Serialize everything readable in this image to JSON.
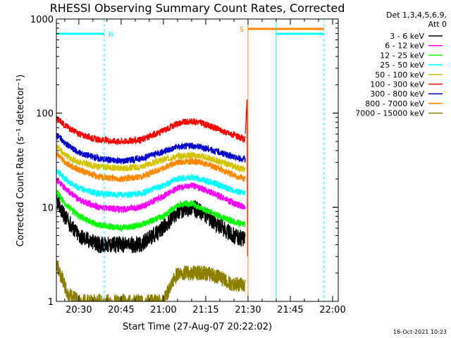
{
  "chart_data": {
    "type": "line",
    "title": "RHESSI Observing Summary Count Rates, Corrected",
    "xlabel": "Start Time (27-Aug-07 20:22:02)",
    "ylabel": "Corrected Count Rate (s⁻¹ detector⁻¹)",
    "y_scale": "log",
    "ylim": [
      1,
      1000
    ],
    "xlim": [
      "20:22:02",
      "22:02:00"
    ],
    "x_ticks": [
      "20:30",
      "20:45",
      "21:00",
      "21:15",
      "21:30",
      "21:45",
      "22:00"
    ],
    "y_ticks": [
      "1",
      "10",
      "100",
      "1000"
    ],
    "legend_title": [
      "Det 1,3,4,5,6,9,",
      "Att 0"
    ],
    "legend_position": "right",
    "series": [
      {
        "name": "3 - 6 keV",
        "color": "#000000",
        "x": [
          "20:22",
          "20:25",
          "20:30",
          "20:37",
          "20:45",
          "20:52",
          "21:00",
          "21:05",
          "21:10",
          "21:13",
          "21:18",
          "21:25",
          "21:29"
        ],
        "y": [
          12,
          8,
          5,
          4,
          4,
          4,
          6,
          9,
          10,
          9,
          7,
          5,
          4.5
        ]
      },
      {
        "name": "6 - 12 keV",
        "color": "#ff00ff",
        "x": [
          "20:22",
          "20:25",
          "20:30",
          "20:37",
          "20:45",
          "20:52",
          "21:00",
          "21:05",
          "21:10",
          "21:13",
          "21:18",
          "21:25",
          "21:29"
        ],
        "y": [
          20,
          16,
          12,
          10,
          9.5,
          10,
          13,
          16,
          17,
          16,
          14,
          11,
          10
        ]
      },
      {
        "name": "12 - 25 keV",
        "color": "#00ff00",
        "x": [
          "20:22",
          "20:25",
          "20:30",
          "20:37",
          "20:45",
          "20:52",
          "21:00",
          "21:05",
          "21:10",
          "21:13",
          "21:18",
          "21:25",
          "21:29"
        ],
        "y": [
          15,
          11,
          8,
          6.5,
          6,
          6.5,
          8,
          10.5,
          11,
          10,
          8.5,
          7,
          6.5
        ]
      },
      {
        "name": "25 - 50 keV",
        "color": "#00ffff",
        "x": [
          "20:22",
          "20:25",
          "20:30",
          "20:37",
          "20:45",
          "20:52",
          "21:00",
          "21:05",
          "21:10",
          "21:13",
          "21:18",
          "21:25",
          "21:29"
        ],
        "y": [
          25,
          20,
          16,
          14,
          13.5,
          14,
          17,
          20,
          21,
          20,
          18,
          15,
          14
        ]
      },
      {
        "name": "50 - 100 keV",
        "color": "#d4c400",
        "x": [
          "20:22",
          "20:25",
          "20:30",
          "20:37",
          "20:45",
          "20:52",
          "21:00",
          "21:05",
          "21:10",
          "21:13",
          "21:18",
          "21:25",
          "21:29"
        ],
        "y": [
          45,
          36,
          30,
          27,
          26,
          27,
          32,
          35,
          36,
          35,
          32,
          27,
          25
        ]
      },
      {
        "name": "100 - 300 keV",
        "color": "#ff0000",
        "x": [
          "20:22",
          "20:25",
          "20:30",
          "20:37",
          "20:45",
          "20:52",
          "21:00",
          "21:05",
          "21:10",
          "21:13",
          "21:18",
          "21:25",
          "21:29"
        ],
        "y": [
          90,
          75,
          60,
          52,
          50,
          52,
          65,
          78,
          82,
          80,
          70,
          58,
          52
        ]
      },
      {
        "name": "300 - 800 keV",
        "color": "#0000cc",
        "x": [
          "20:22",
          "20:25",
          "20:30",
          "20:37",
          "20:45",
          "20:52",
          "21:00",
          "21:05",
          "21:10",
          "21:13",
          "21:18",
          "21:25",
          "21:29"
        ],
        "y": [
          60,
          48,
          38,
          33,
          31,
          33,
          39,
          44,
          45,
          44,
          40,
          34,
          32
        ]
      },
      {
        "name": "800 - 7000 keV",
        "color": "#ff8800",
        "x": [
          "20:22",
          "20:25",
          "20:30",
          "20:37",
          "20:45",
          "20:52",
          "21:00",
          "21:05",
          "21:10",
          "21:13",
          "21:18",
          "21:25",
          "21:29"
        ],
        "y": [
          38,
          30,
          25,
          21,
          20,
          21,
          26,
          30,
          31,
          30,
          27,
          22,
          20
        ]
      },
      {
        "name": "7000 - 15000 keV",
        "color": "#8b8000",
        "x": [
          "20:22",
          "20:24",
          "20:26",
          "20:30",
          "20:40",
          "21:00",
          "21:05",
          "21:10",
          "21:15",
          "21:20",
          "21:25",
          "21:29"
        ],
        "y": [
          2.5,
          1.8,
          1.2,
          1,
          1,
          1,
          2,
          2,
          2,
          1.8,
          1.5,
          1.5
        ]
      }
    ],
    "markers": [
      {
        "label": "N",
        "color": "#00ffff",
        "start": "20:22:02",
        "end": "20:39:00"
      },
      {
        "label": "S",
        "color": "#ff8800",
        "start": "21:30:00",
        "end": "21:57:00"
      },
      {
        "label": "",
        "color": "#00ffff",
        "start": "21:40:00",
        "end": "21:57:00"
      }
    ],
    "grid": false
  },
  "footer_date": "16-Oct-2021 10:23"
}
